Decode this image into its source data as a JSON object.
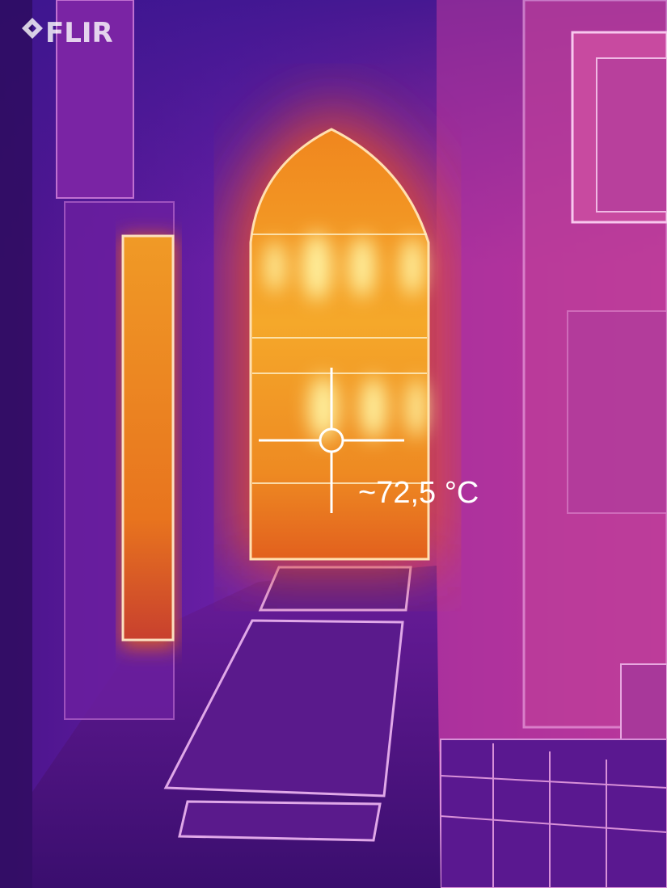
{
  "app": {
    "logo": "FLIR"
  },
  "measurement": {
    "temperature_label": "~72,5 °C"
  }
}
